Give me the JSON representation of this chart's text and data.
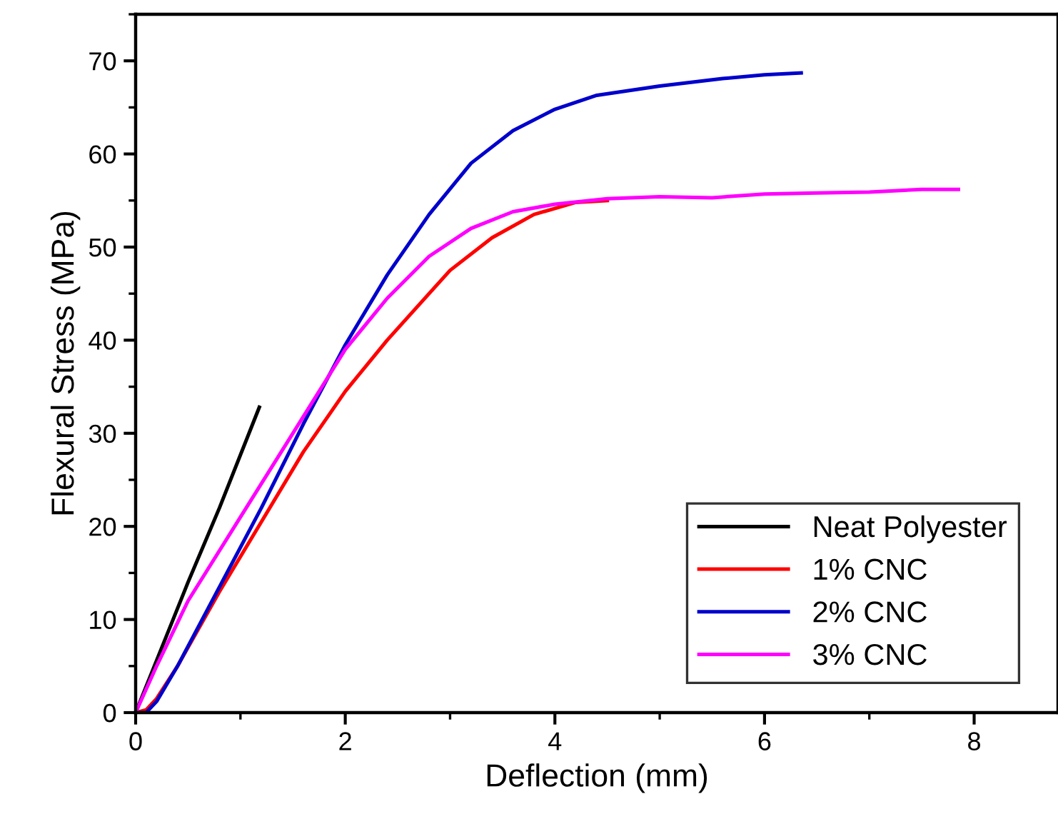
{
  "chart_data": {
    "type": "line",
    "xlabel": "Deflection (mm)",
    "ylabel": "Flexural Stress (MPa)",
    "xlim": [
      0,
      8.8
    ],
    "ylim": [
      0,
      75
    ],
    "xticks": [
      0,
      2,
      4,
      6,
      8
    ],
    "yticks": [
      0,
      10,
      20,
      30,
      40,
      50,
      60,
      70
    ],
    "grid": false,
    "legend": "bottom right",
    "marker": "none",
    "line_style": "solid",
    "series": [
      {
        "name": "Neat Polyester",
        "color": "#000000",
        "x": [
          0,
          0.5,
          0.8,
          1.18
        ],
        "values": [
          0,
          14,
          22,
          32.8
        ]
      },
      {
        "name": "1% CNC",
        "color": "#ff0000",
        "x": [
          0,
          0.1,
          0.2,
          0.4,
          0.8,
          1.2,
          1.6,
          2.0,
          2.4,
          2.8,
          3.0,
          3.4,
          3.8,
          4.2,
          4.5
        ],
        "values": [
          0,
          0.3,
          1.5,
          5,
          13,
          20.5,
          28,
          34.5,
          40,
          45,
          47.5,
          51,
          53.5,
          54.8,
          55
        ]
      },
      {
        "name": "2% CNC",
        "color": "#0000cc",
        "x": [
          0,
          0.1,
          0.2,
          0.4,
          0.8,
          1.2,
          1.6,
          2.0,
          2.4,
          2.8,
          3.2,
          3.6,
          4.0,
          4.4,
          5.0,
          5.6,
          6.0,
          6.35
        ],
        "values": [
          0,
          0,
          1.2,
          5,
          13.5,
          22,
          31,
          39.5,
          47,
          53.5,
          59,
          62.5,
          64.8,
          66.3,
          67.3,
          68.1,
          68.5,
          68.7
        ]
      },
      {
        "name": "3% CNC",
        "color": "#ff00ff",
        "x": [
          0,
          0.2,
          0.5,
          1.0,
          1.5,
          2.0,
          2.4,
          2.8,
          3.2,
          3.6,
          4.0,
          4.5,
          5.0,
          5.5,
          6.0,
          6.5,
          7.0,
          7.5,
          7.85
        ],
        "values": [
          0,
          5,
          12,
          21,
          30,
          39,
          44.5,
          49,
          52,
          53.8,
          54.6,
          55.2,
          55.4,
          55.3,
          55.7,
          55.8,
          55.9,
          56.2,
          56.2
        ]
      }
    ]
  }
}
